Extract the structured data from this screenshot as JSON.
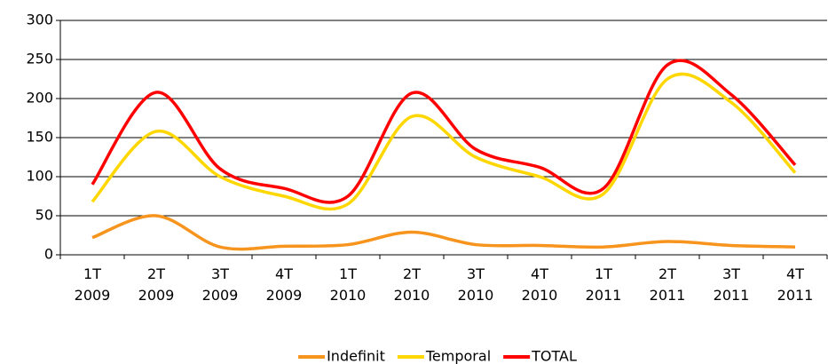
{
  "chart_data": {
    "type": "line",
    "categories": [
      "1T 2009",
      "2T 2009",
      "3T 2009",
      "4T 2009",
      "1T 2010",
      "2T 2010",
      "3T 2010",
      "4T 2010",
      "1T 2011",
      "2T 2011",
      "3T 2011",
      "4T 2011"
    ],
    "series": [
      {
        "name": "Indefinit",
        "color": "#f7941d",
        "values": [
          22,
          50,
          10,
          11,
          13,
          29,
          13,
          12,
          10,
          17,
          12,
          10
        ]
      },
      {
        "name": "Temporal",
        "color": "#ffd700",
        "values": [
          68,
          158,
          100,
          75,
          65,
          177,
          125,
          100,
          78,
          225,
          195,
          105
        ]
      },
      {
        "name": "TOTAL",
        "color": "#ff0000",
        "values": [
          90,
          208,
          110,
          85,
          75,
          207,
          135,
          112,
          85,
          243,
          205,
          115
        ]
      }
    ],
    "ylim": [
      0,
      300
    ],
    "yticks": [
      0,
      50,
      100,
      150,
      200,
      250,
      300
    ],
    "grid": true,
    "smooth": true,
    "legend": "bottom"
  }
}
